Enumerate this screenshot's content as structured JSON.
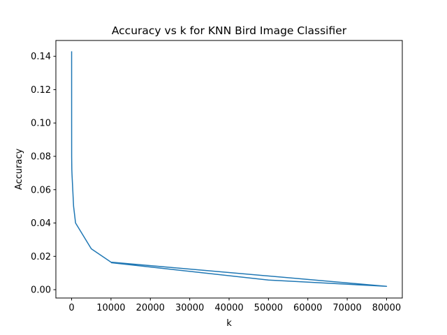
{
  "chart_data": {
    "type": "line",
    "title": "Accuracy vs k for KNN Bird Image Classifier",
    "xlabel": "k",
    "ylabel": "Accuracy",
    "xlim": [
      -4000,
      84000
    ],
    "ylim": [
      -0.005,
      0.1495
    ],
    "x_ticks": [
      0,
      10000,
      20000,
      30000,
      40000,
      50000,
      60000,
      70000,
      80000
    ],
    "x_tick_labels": [
      "0",
      "10000",
      "20000",
      "30000",
      "40000",
      "50000",
      "60000",
      "70000",
      "80000"
    ],
    "y_ticks": [
      0.0,
      0.02,
      0.04,
      0.06,
      0.08,
      0.1,
      0.12,
      0.14
    ],
    "y_tick_labels": [
      "0.00",
      "0.02",
      "0.04",
      "0.06",
      "0.08",
      "0.10",
      "0.12",
      "0.14"
    ],
    "grid": false,
    "legend": "none",
    "series": [
      {
        "color": "#1f77b4",
        "x": [
          1,
          5,
          10,
          50,
          100,
          500,
          1000,
          5000,
          10000,
          80000,
          50000,
          10000
        ],
        "y": [
          0.143,
          0.1,
          0.08,
          0.072,
          0.069,
          0.05,
          0.04,
          0.0245,
          0.0165,
          0.002,
          0.0058,
          0.0162
        ]
      }
    ]
  }
}
